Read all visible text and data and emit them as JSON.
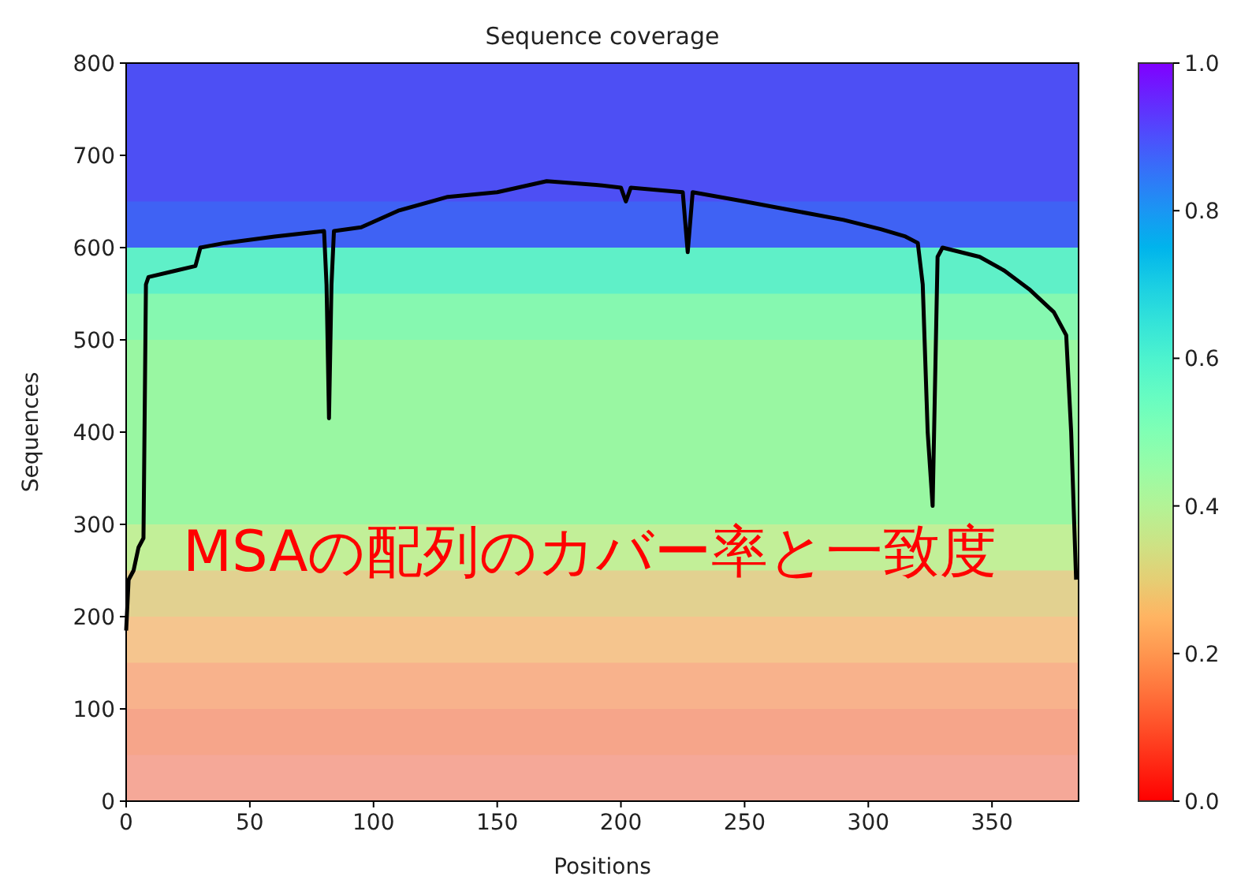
{
  "chart_data": {
    "type": "line",
    "title": "Sequence coverage",
    "xlabel": "Positions",
    "ylabel": "Sequences",
    "xlim": [
      0,
      385
    ],
    "ylim": [
      0,
      800
    ],
    "xticks": [
      0,
      50,
      100,
      150,
      200,
      250,
      300,
      350
    ],
    "yticks": [
      0,
      100,
      200,
      300,
      400,
      500,
      600,
      700,
      800
    ],
    "clim": [
      0,
      1
    ],
    "cticks": [
      {
        "value": 0,
        "label": "0.0"
      },
      {
        "value": 0.2,
        "label": "0.2"
      },
      {
        "value": 0.4,
        "label": "0.4"
      },
      {
        "value": 0.6,
        "label": "0.6"
      },
      {
        "value": 0.8,
        "label": "0.8"
      },
      {
        "value": 1,
        "label": "1.0"
      }
    ],
    "bands": [
      {
        "axis": "y",
        "from": 650,
        "to": 800,
        "color": "#4d4ff4"
      },
      {
        "axis": "y",
        "from": 600,
        "to": 650,
        "color": "#3f62f4"
      },
      {
        "axis": "y",
        "from": 550,
        "to": 600,
        "color": "#5ff0c8"
      },
      {
        "axis": "y",
        "from": 500,
        "to": 550,
        "color": "#86f8b0"
      },
      {
        "axis": "y",
        "from": 300,
        "to": 500,
        "color": "#99f7a2"
      },
      {
        "axis": "y",
        "from": 250,
        "to": 300,
        "color": "#c2ef98"
      },
      {
        "axis": "y",
        "from": 200,
        "to": 250,
        "color": "#e2d190"
      },
      {
        "axis": "y",
        "from": 150,
        "to": 200,
        "color": "#f5c58e"
      },
      {
        "axis": "y",
        "from": 100,
        "to": 150,
        "color": "#f8b28c"
      },
      {
        "axis": "y",
        "from": 50,
        "to": 100,
        "color": "#f6a58a"
      },
      {
        "axis": "y",
        "from": 0,
        "to": 50,
        "color": "#f5a898"
      }
    ],
    "series": [
      {
        "color": "#000000",
        "x": [
          0,
          1,
          3,
          5,
          7,
          8,
          9,
          20,
          28,
          30,
          40,
          60,
          80,
          81,
          82,
          83,
          84,
          95,
          110,
          130,
          150,
          170,
          190,
          200,
          202,
          204,
          225,
          227,
          229,
          250,
          270,
          290,
          305,
          315,
          320,
          322,
          324,
          326,
          328,
          330,
          345,
          355,
          365,
          375,
          380,
          382,
          384
        ],
        "values": [
          185,
          240,
          250,
          275,
          285,
          560,
          568,
          575,
          580,
          600,
          605,
          612,
          618,
          560,
          415,
          560,
          618,
          622,
          640,
          655,
          660,
          672,
          668,
          665,
          650,
          665,
          660,
          595,
          660,
          650,
          640,
          630,
          620,
          612,
          605,
          560,
          400,
          320,
          590,
          600,
          590,
          575,
          555,
          530,
          505,
          400,
          240
        ]
      }
    ],
    "annotations": [
      "MSAの配列のカバー率と一致度"
    ]
  }
}
